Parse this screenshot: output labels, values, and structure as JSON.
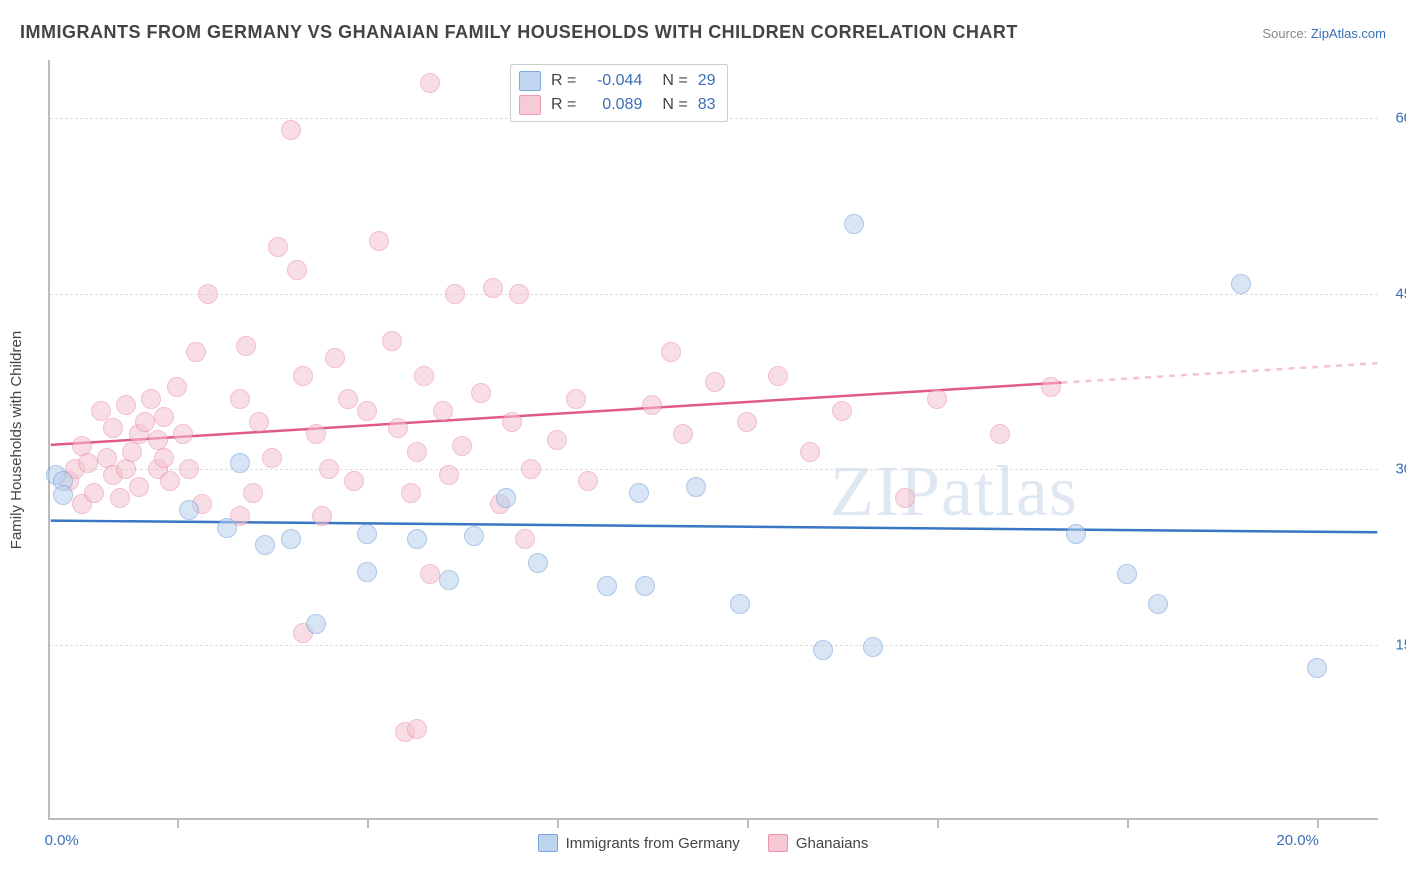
{
  "title": "IMMIGRANTS FROM GERMANY VS GHANAIAN FAMILY HOUSEHOLDS WITH CHILDREN CORRELATION CHART",
  "source_label": "Source:",
  "source_value": "ZipAtlas.com",
  "ylabel": "Family Households with Children",
  "watermark": "ZIPatlas",
  "chart": {
    "type": "scatter",
    "background_color": "#ffffff",
    "grid_color": "#dddddd",
    "axis_color": "#bbbbbb",
    "text_color": "#444444",
    "accent_color": "#3a6fb7",
    "marker_radius": 10,
    "marker_border_width": 1.5,
    "x_domain": [
      0.0,
      21.0
    ],
    "y_domain": [
      0.0,
      65.0
    ],
    "x_ticks": [
      2.0,
      5.0,
      8.0,
      11.0,
      14.0,
      17.0,
      20.0
    ],
    "x_labels": [
      {
        "v": 0.0,
        "t": "0.0%"
      },
      {
        "v": 20.0,
        "t": "20.0%"
      }
    ],
    "y_ticks": [
      {
        "v": 15.0,
        "t": "15.0%"
      },
      {
        "v": 30.0,
        "t": "30.0%"
      },
      {
        "v": 45.0,
        "t": "45.0%"
      },
      {
        "v": 60.0,
        "t": "60.0%"
      }
    ],
    "series": [
      {
        "name": "Immigrants from Germany",
        "color_fill": "#b7d0ee",
        "color_stroke": "#6a9bd8",
        "fill_opacity": 0.55,
        "R": "-0.044",
        "N": "29",
        "trend": {
          "y0": 25.5,
          "y1": 24.5,
          "x_solid_end": 21.0,
          "solid_color": "#3976c4",
          "dash_color": "#b7d0ee"
        },
        "points": [
          [
            0.1,
            29.5
          ],
          [
            0.2,
            29.0
          ],
          [
            0.2,
            27.8
          ],
          [
            2.2,
            26.5
          ],
          [
            3.0,
            30.5
          ],
          [
            2.8,
            25.0
          ],
          [
            3.4,
            23.5
          ],
          [
            3.8,
            24.0
          ],
          [
            4.2,
            16.8
          ],
          [
            5.0,
            24.5
          ],
          [
            5.8,
            24.0
          ],
          [
            5.0,
            21.2
          ],
          [
            6.3,
            20.5
          ],
          [
            6.7,
            24.3
          ],
          [
            7.2,
            27.5
          ],
          [
            7.7,
            22.0
          ],
          [
            8.8,
            20.0
          ],
          [
            9.3,
            28.0
          ],
          [
            9.4,
            20.0
          ],
          [
            10.2,
            28.5
          ],
          [
            10.9,
            18.5
          ],
          [
            12.2,
            14.5
          ],
          [
            13.0,
            14.8
          ],
          [
            12.7,
            51.0
          ],
          [
            16.2,
            24.5
          ],
          [
            17.0,
            21.0
          ],
          [
            17.5,
            18.5
          ],
          [
            18.8,
            45.8
          ],
          [
            20.0,
            13.0
          ]
        ]
      },
      {
        "name": "Ghanaians",
        "color_fill": "#f5c3cf",
        "color_stroke": "#e98ba5",
        "fill_opacity": 0.55,
        "R": "0.089",
        "N": "83",
        "trend": {
          "y0": 32.0,
          "y1": 39.0,
          "x_solid_end": 16.0,
          "solid_color": "#e05a87",
          "dash_color": "#f5c3cf"
        },
        "points": [
          [
            0.3,
            29.0
          ],
          [
            0.4,
            30.0
          ],
          [
            0.5,
            27.0
          ],
          [
            0.5,
            32.0
          ],
          [
            0.6,
            30.5
          ],
          [
            0.7,
            28.0
          ],
          [
            0.8,
            35.0
          ],
          [
            0.9,
            31.0
          ],
          [
            1.0,
            29.5
          ],
          [
            1.0,
            33.5
          ],
          [
            1.1,
            27.5
          ],
          [
            1.2,
            35.5
          ],
          [
            1.2,
            30.0
          ],
          [
            1.3,
            31.5
          ],
          [
            1.4,
            33.0
          ],
          [
            1.4,
            28.5
          ],
          [
            1.5,
            34.0
          ],
          [
            1.6,
            36.0
          ],
          [
            1.7,
            30.0
          ],
          [
            1.7,
            32.5
          ],
          [
            1.8,
            31.0
          ],
          [
            1.8,
            34.5
          ],
          [
            1.9,
            29.0
          ],
          [
            2.0,
            37.0
          ],
          [
            2.1,
            33.0
          ],
          [
            2.2,
            30.0
          ],
          [
            2.3,
            40.0
          ],
          [
            2.4,
            27.0
          ],
          [
            2.5,
            45.0
          ],
          [
            3.0,
            26.0
          ],
          [
            3.0,
            36.0
          ],
          [
            3.1,
            40.5
          ],
          [
            3.2,
            28.0
          ],
          [
            3.3,
            34.0
          ],
          [
            3.5,
            31.0
          ],
          [
            3.6,
            49.0
          ],
          [
            3.8,
            59.0
          ],
          [
            3.9,
            47.0
          ],
          [
            4.0,
            38.0
          ],
          [
            4.2,
            33.0
          ],
          [
            4.3,
            26.0
          ],
          [
            4.4,
            30.0
          ],
          [
            4.5,
            39.5
          ],
          [
            4.7,
            36.0
          ],
          [
            4.8,
            29.0
          ],
          [
            4.0,
            16.0
          ],
          [
            5.0,
            35.0
          ],
          [
            5.2,
            49.5
          ],
          [
            5.4,
            41.0
          ],
          [
            5.5,
            33.5
          ],
          [
            5.7,
            28.0
          ],
          [
            5.8,
            31.5
          ],
          [
            5.6,
            7.5
          ],
          [
            5.8,
            7.8
          ],
          [
            5.9,
            38.0
          ],
          [
            6.0,
            21.0
          ],
          [
            6.0,
            63.0
          ],
          [
            6.2,
            35.0
          ],
          [
            6.3,
            29.5
          ],
          [
            6.4,
            45.0
          ],
          [
            6.5,
            32.0
          ],
          [
            6.8,
            36.5
          ],
          [
            7.0,
            45.5
          ],
          [
            7.1,
            27.0
          ],
          [
            7.3,
            34.0
          ],
          [
            7.5,
            24.0
          ],
          [
            7.6,
            30.0
          ],
          [
            7.4,
            45.0
          ],
          [
            8.0,
            32.5
          ],
          [
            8.3,
            36.0
          ],
          [
            8.5,
            29.0
          ],
          [
            9.5,
            35.5
          ],
          [
            9.8,
            40.0
          ],
          [
            10.0,
            33.0
          ],
          [
            10.5,
            37.5
          ],
          [
            11.0,
            34.0
          ],
          [
            11.5,
            38.0
          ],
          [
            12.0,
            31.5
          ],
          [
            12.5,
            35.0
          ],
          [
            13.5,
            27.5
          ],
          [
            14.0,
            36.0
          ],
          [
            15.0,
            33.0
          ],
          [
            15.8,
            37.0
          ]
        ]
      }
    ]
  },
  "legend": {
    "R_label": "R =",
    "N_label": "N ="
  }
}
